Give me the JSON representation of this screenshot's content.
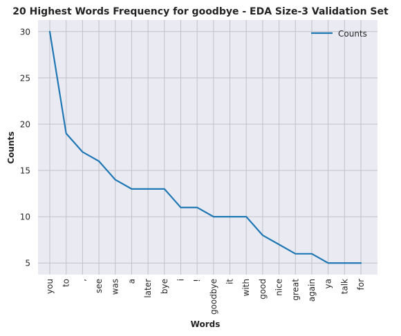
{
  "chart_data": {
    "type": "line",
    "title": "20 Highest Words Frequency for goodbye - EDA Size-3 Validation Set",
    "xlabel": "Words",
    "ylabel": "Counts",
    "categories": [
      "you",
      "to",
      ",",
      "see",
      "was",
      "a",
      "later",
      "bye",
      "i",
      "!",
      "goodbye",
      "it",
      "with",
      "good",
      "nice",
      "great",
      "again",
      "ya",
      "talk",
      "for"
    ],
    "series": [
      {
        "name": "Counts",
        "values": [
          30,
          19,
          17,
          16,
          14,
          13,
          13,
          13,
          11,
          11,
          10,
          10,
          10,
          8,
          7,
          6,
          6,
          5,
          5,
          5
        ]
      }
    ],
    "ylim": [
      3.75,
      31.25
    ],
    "yticks": [
      5,
      10,
      15,
      20,
      25,
      30
    ],
    "grid": true,
    "legend": "top-right",
    "colors": {
      "line": "#1f77b4",
      "background": "#eaeaf2",
      "grid": "#c0c0c8"
    }
  }
}
